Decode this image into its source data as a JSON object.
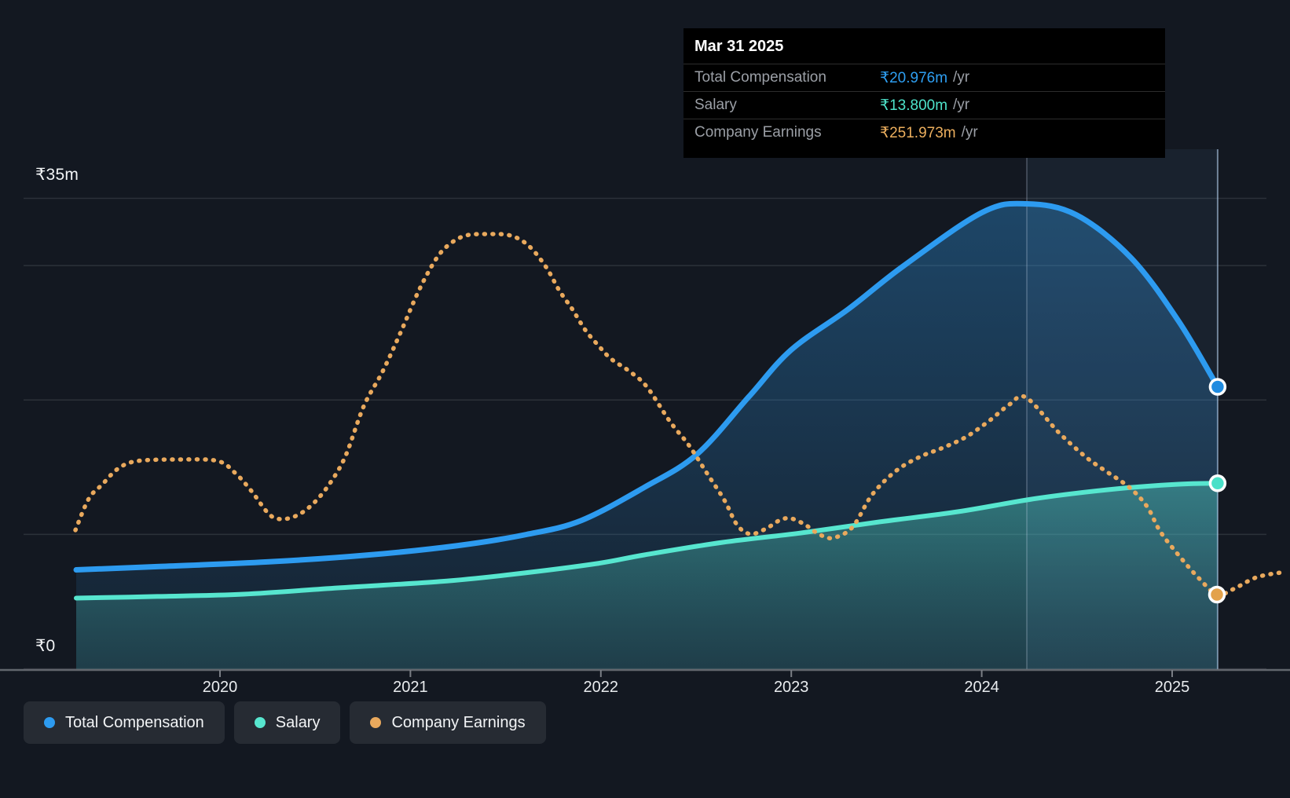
{
  "tooltip": {
    "title": "Mar 31 2025",
    "rows": [
      {
        "label": "Total Compensation",
        "value": "₹20.976m",
        "suffix": "/yr",
        "color": "#2e9ff2"
      },
      {
        "label": "Salary",
        "value": "₹13.800m",
        "suffix": "/yr",
        "color": "#4ee3cb"
      },
      {
        "label": "Company Earnings",
        "value": "₹251.973m",
        "suffix": "/yr",
        "color": "#ecaf5e"
      }
    ]
  },
  "legend": [
    {
      "label": "Total Compensation",
      "color": "#2d9bf0"
    },
    {
      "label": "Salary",
      "color": "#57e6cf"
    },
    {
      "label": "Company Earnings",
      "color": "#e9a95d"
    }
  ],
  "chart_data": {
    "type": "line",
    "title": "",
    "x_axis": {
      "tick_years": [
        2020,
        2021,
        2022,
        2023,
        2024,
        2025
      ],
      "tick_labels": [
        "2020",
        "2021",
        "2022",
        "2023",
        "2024",
        "2025"
      ],
      "domain": [
        2019.2,
        2025.62
      ]
    },
    "y_axis": {
      "top_label": "₹35m",
      "bottom_label": "₹0",
      "unit": "₹m",
      "gridline_values_m": [
        35,
        30,
        20,
        10,
        0
      ],
      "labeled_values_m": [
        35,
        0
      ],
      "range_m": [
        0,
        38.5
      ]
    },
    "highlight_period": {
      "from": 2024.237,
      "to": 2025.239
    },
    "hover_x": 2025.239,
    "colors": {
      "grid": "rgba(255,255,255,0.11)",
      "axis": "#62666d",
      "band": "rgba(120,170,230,0.07)",
      "band_edge": "rgba(205,220,240,0.30)",
      "hover_line": "rgba(190,218,250,0.55)"
    },
    "series": [
      {
        "id": "total_compensation",
        "name": "Total Compensation",
        "axis": "compensation",
        "color": "#2d9bf0",
        "style": "solid",
        "width": 7,
        "area": true,
        "area_gradient": [
          "rgba(45,140,210,0.40)",
          "rgba(45,140,210,0.08)"
        ],
        "marker": {
          "x": 2025.239,
          "value": 20.976,
          "fill": "#1f8be0"
        },
        "points": [
          [
            2019.245,
            7.36
          ],
          [
            2019.67,
            7.6
          ],
          [
            2020.248,
            7.95
          ],
          [
            2020.784,
            8.47
          ],
          [
            2021.25,
            9.17
          ],
          [
            2021.609,
            9.99
          ],
          [
            2021.898,
            11.04
          ],
          [
            2022.228,
            13.5
          ],
          [
            2022.504,
            15.95
          ],
          [
            2022.776,
            20.22
          ],
          [
            2022.999,
            23.72
          ],
          [
            2023.3,
            26.76
          ],
          [
            2023.589,
            29.97
          ],
          [
            2024.002,
            33.95
          ],
          [
            2024.237,
            34.59
          ],
          [
            2024.497,
            33.77
          ],
          [
            2024.785,
            30.56
          ],
          [
            2025.033,
            25.88
          ],
          [
            2025.239,
            20.976
          ]
        ]
      },
      {
        "id": "salary",
        "name": "Salary",
        "axis": "compensation",
        "color": "#57e6cf",
        "style": "solid",
        "width": 6,
        "area": true,
        "area_gradient": [
          "rgba(87,230,207,0.40)",
          "rgba(62,150,155,0.24)"
        ],
        "marker": {
          "x": 2025.239,
          "value": 13.8,
          "fill": "#49e0c8"
        },
        "points": [
          [
            2019.245,
            5.26
          ],
          [
            2019.67,
            5.38
          ],
          [
            2020.124,
            5.55
          ],
          [
            2020.619,
            6.02
          ],
          [
            2021.155,
            6.49
          ],
          [
            2021.526,
            7.01
          ],
          [
            2021.98,
            7.83
          ],
          [
            2022.228,
            8.47
          ],
          [
            2022.64,
            9.41
          ],
          [
            2023.053,
            10.11
          ],
          [
            2023.465,
            10.93
          ],
          [
            2023.878,
            11.69
          ],
          [
            2024.29,
            12.68
          ],
          [
            2024.703,
            13.38
          ],
          [
            2025.033,
            13.73
          ],
          [
            2025.239,
            13.8
          ]
        ]
      },
      {
        "id": "company_earnings",
        "name": "Company Earnings",
        "axis": "earnings",
        "color": "#e9a95d",
        "style": "dotted",
        "width": 5.5,
        "area": false,
        "marker": {
          "x": 2025.235,
          "value": 251.973,
          "fill": "#e3a24b"
        },
        "points": [
          [
            2019.241,
            467
          ],
          [
            2019.311,
            572
          ],
          [
            2019.381,
            619
          ],
          [
            2019.464,
            672
          ],
          [
            2019.567,
            698
          ],
          [
            2019.794,
            703
          ],
          [
            2019.988,
            698
          ],
          [
            2020.083,
            656
          ],
          [
            2020.165,
            598
          ],
          [
            2020.26,
            519
          ],
          [
            2020.33,
            504
          ],
          [
            2020.413,
            519
          ],
          [
            2020.495,
            559
          ],
          [
            2020.578,
            624
          ],
          [
            2020.66,
            716
          ],
          [
            2020.755,
            881
          ],
          [
            2020.854,
            997
          ],
          [
            2020.949,
            1128
          ],
          [
            2021.044,
            1267
          ],
          [
            2021.134,
            1372
          ],
          [
            2021.205,
            1422
          ],
          [
            2021.291,
            1451
          ],
          [
            2021.403,
            1456
          ],
          [
            2021.526,
            1451
          ],
          [
            2021.621,
            1417
          ],
          [
            2021.712,
            1346
          ],
          [
            2021.782,
            1267
          ],
          [
            2021.848,
            1207
          ],
          [
            2021.918,
            1136
          ],
          [
            2021.988,
            1083
          ],
          [
            2022.054,
            1039
          ],
          [
            2022.145,
            1000
          ],
          [
            2022.24,
            947
          ],
          [
            2022.364,
            829
          ],
          [
            2022.463,
            750
          ],
          [
            2022.558,
            656
          ],
          [
            2022.649,
            567
          ],
          [
            2022.715,
            485
          ],
          [
            2022.785,
            454
          ],
          [
            2022.867,
            472
          ],
          [
            2022.942,
            501
          ],
          [
            2022.999,
            506
          ],
          [
            2023.073,
            485
          ],
          [
            2023.144,
            454
          ],
          [
            2023.218,
            441
          ],
          [
            2023.321,
            477
          ],
          [
            2023.424,
            585
          ],
          [
            2023.548,
            664
          ],
          [
            2023.672,
            711
          ],
          [
            2023.795,
            742
          ],
          [
            2023.919,
            779
          ],
          [
            2024.043,
            834
          ],
          [
            2024.146,
            887
          ],
          [
            2024.233,
            910
          ],
          [
            2024.402,
            795
          ],
          [
            2024.538,
            716
          ],
          [
            2024.633,
            672
          ],
          [
            2024.773,
            611
          ],
          [
            2024.868,
            546
          ],
          [
            2024.938,
            462
          ],
          [
            2025.045,
            375
          ],
          [
            2025.144,
            304
          ],
          [
            2025.235,
            252
          ],
          [
            2025.321,
            270
          ],
          [
            2025.446,
            310
          ],
          [
            2025.598,
            328
          ]
        ]
      }
    ]
  }
}
